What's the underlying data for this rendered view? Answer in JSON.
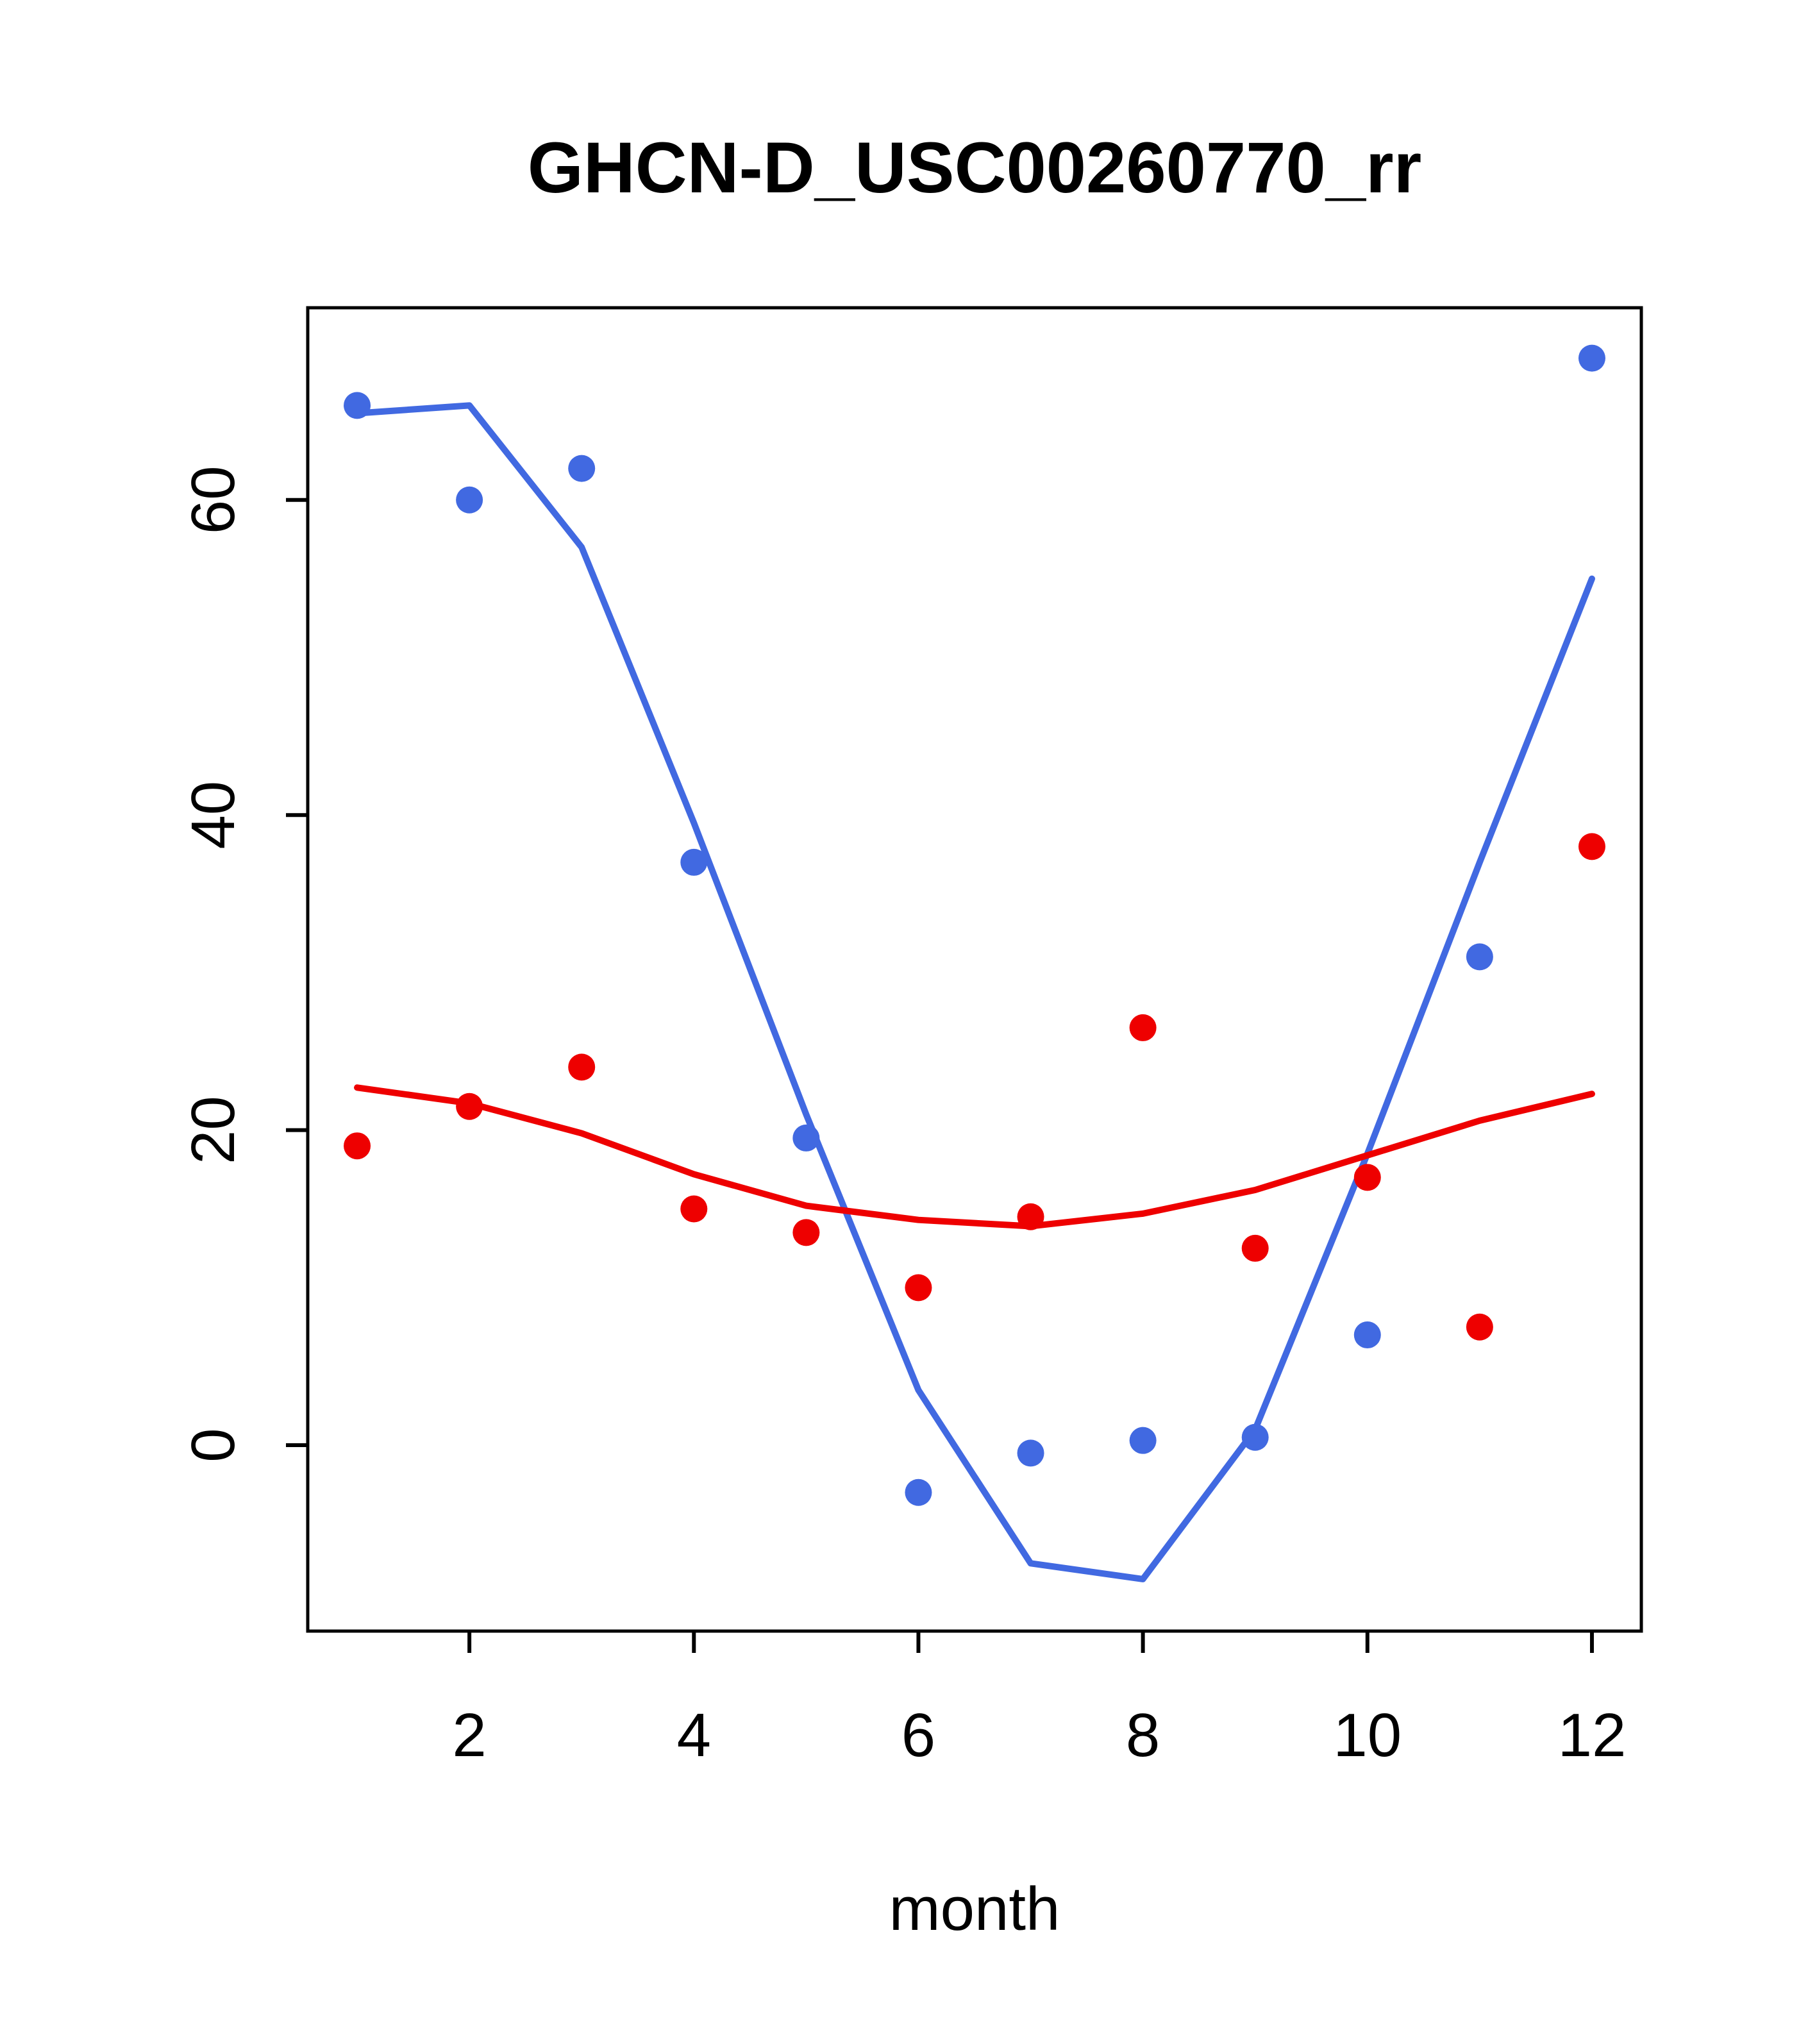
{
  "chart_data": {
    "type": "scatter",
    "title": "GHCN-D_USC00260770_rr",
    "xlabel": "month",
    "ylabel": "",
    "x": [
      1,
      2,
      3,
      4,
      5,
      6,
      7,
      8,
      9,
      10,
      11,
      12
    ],
    "xticks": [
      2,
      4,
      6,
      8,
      10,
      12
    ],
    "yticks": [
      0,
      20,
      40,
      60
    ],
    "xlim": [
      0.56,
      12.44
    ],
    "ylim": [
      -11.8,
      72.2
    ],
    "grid": false,
    "legend": "none",
    "series": [
      {
        "name": "blue-smooth-line",
        "kind": "line",
        "color": "#4169e1",
        "values": [
          65.5,
          66,
          57,
          39.5,
          21,
          3.5,
          -7.5,
          -8.5,
          1,
          18.5,
          37,
          55
        ]
      },
      {
        "name": "red-smooth-line",
        "kind": "line",
        "color": "#ee0000",
        "values": [
          22.7,
          21.7,
          19.8,
          17.2,
          15.2,
          14.3,
          13.9,
          14.7,
          16.2,
          18.4,
          20.6,
          22.3
        ]
      },
      {
        "name": "blue-monthly-points",
        "kind": "points",
        "color": "#4169e1",
        "values": [
          66,
          60,
          62,
          37,
          19.5,
          -3,
          -0.5,
          0.3,
          0.5,
          7,
          31,
          69
        ]
      },
      {
        "name": "red-monthly-points",
        "kind": "points",
        "color": "#ee0000",
        "values": [
          19,
          21.5,
          24,
          15,
          13.5,
          10,
          14.5,
          26.5,
          12.5,
          17,
          7.5,
          38
        ]
      }
    ]
  }
}
